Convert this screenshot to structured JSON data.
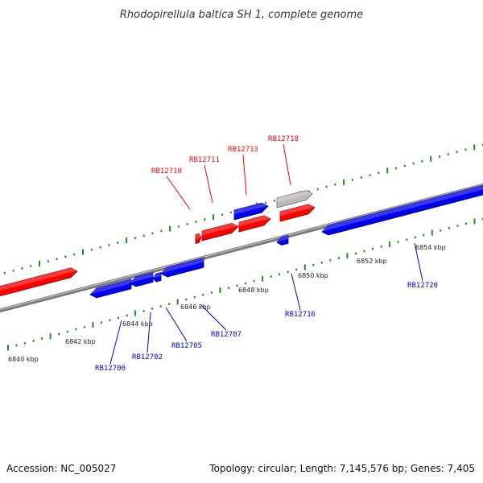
{
  "title": "Rhodopirellula baltica SH 1, complete genome",
  "footer": {
    "accession": "Accession: NC_005027",
    "stats": "Topology: circular; Length: 7,145,576 bp; Genes: 7,405"
  },
  "colors": {
    "forward": "#ff0000",
    "reverse": "#0000ee",
    "other": "#bbbbbb",
    "ticks": "#228b22",
    "backbone": "#888888"
  },
  "scale": {
    "labels": [
      "6840 kbp",
      "6842 kbp",
      "6844 kbp",
      "6846 kbp",
      "6848 kbp",
      "6850 kbp",
      "6852 kbp",
      "6854 kbp"
    ]
  },
  "genes": {
    "forward_labels": [
      "RB12710",
      "RB12711",
      "RB12713",
      "RB12718"
    ],
    "reverse_labels": [
      "RB12700",
      "RB12702",
      "RB12705",
      "RB12707",
      "RB12716",
      "RB12720"
    ]
  }
}
